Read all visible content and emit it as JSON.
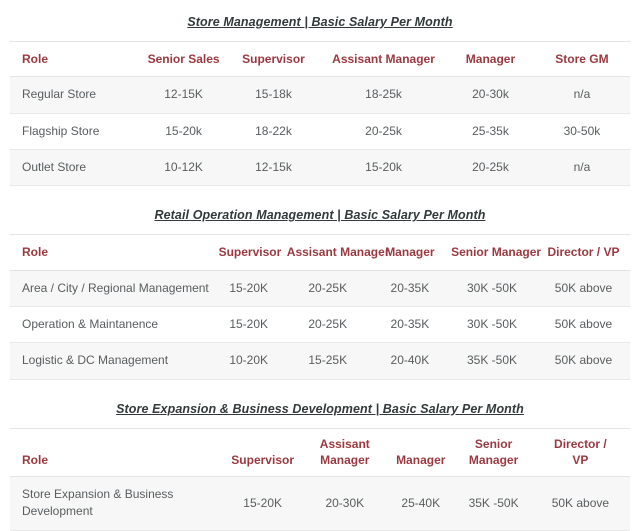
{
  "colors": {
    "title_text": "#323a3b",
    "header_text": "#9a3a40",
    "body_text": "#595d5f",
    "row_stripe": "#f7f7f7",
    "border": "#e3e3e3",
    "background": "#ffffff"
  },
  "tables": [
    {
      "title": "Store Management | Basic Salary Per Month",
      "columns": [
        "Role",
        "Senior Sales",
        "Supervisor",
        "Assisant Manager",
        "Manager",
        "Store GM"
      ],
      "rows": [
        [
          "Regular Store",
          "12-15K",
          "15-18k",
          "18-25k",
          "20-30k",
          "n/a"
        ],
        [
          "Flagship Store",
          "15-20k",
          "18-22k",
          "20-25k",
          "25-35k",
          "30-50k"
        ],
        [
          "Outlet Store",
          "10-12K",
          "12-15k",
          "15-20k",
          "20-25k",
          "n/a"
        ]
      ]
    },
    {
      "title": "Retail Operation Management | Basic Salary Per Month",
      "columns": [
        "Role",
        "Supervisor",
        "Assisant Manager",
        "Manager",
        "Senior Manager",
        "Director / VP"
      ],
      "rows": [
        [
          "Area / City / Regional Management",
          "15-20K",
          "20-25K",
          "20-35K",
          "30K -50K",
          "50K above"
        ],
        [
          "Operation & Maintanence",
          "15-20K",
          "20-25K",
          "20-35K",
          "30K -50K",
          "50K above"
        ],
        [
          "Logistic & DC Management",
          "10-20K",
          "15-25K",
          "20-40K",
          "35K -50K",
          "50K above"
        ]
      ]
    },
    {
      "title": "Store Expansion & Business Development | Basic Salary Per Month",
      "columns": [
        "Role",
        "Supervisor",
        "Assisant Manager",
        "Manager",
        "Senior Manager",
        "Director / VP"
      ],
      "rows": [
        [
          "Store Expansion & Business Development",
          "15-20K",
          "20-30K",
          "25-40K",
          "35K -50K",
          "50K above"
        ]
      ]
    }
  ]
}
